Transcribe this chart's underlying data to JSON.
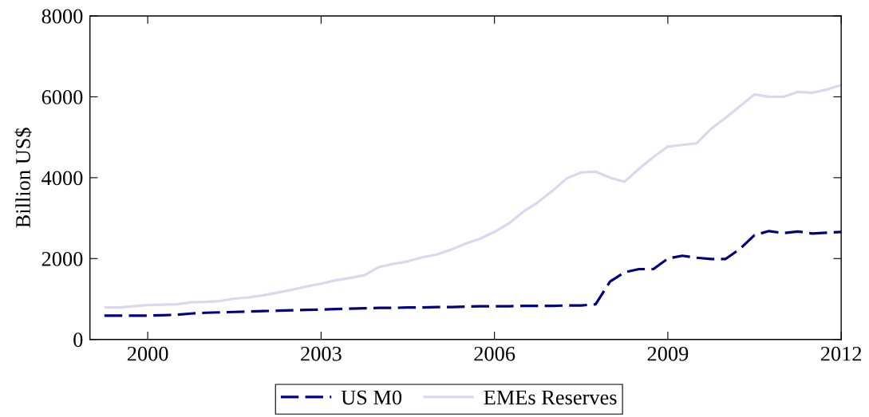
{
  "chart_data": {
    "type": "line",
    "ylabel": "Billion US$",
    "xlim": [
      1999,
      2012
    ],
    "xticks": [
      2000,
      2003,
      2006,
      2009,
      2012
    ],
    "ylim": [
      0,
      8000
    ],
    "yticks": [
      0,
      2000,
      4000,
      6000,
      8000
    ],
    "grid": false,
    "legend": "bottom",
    "marker": "none",
    "x": [
      1999.25,
      1999.5,
      1999.75,
      2000.0,
      2000.25,
      2000.5,
      2000.75,
      2001.0,
      2001.25,
      2001.5,
      2001.75,
      2002.0,
      2002.25,
      2002.5,
      2002.75,
      2003.0,
      2003.25,
      2003.5,
      2003.75,
      2004.0,
      2004.25,
      2004.5,
      2004.75,
      2005.0,
      2005.25,
      2005.5,
      2005.75,
      2006.0,
      2006.25,
      2006.5,
      2006.75,
      2007.0,
      2007.25,
      2007.5,
      2007.75,
      2008.0,
      2008.25,
      2008.5,
      2008.75,
      2009.0,
      2009.25,
      2009.5,
      2009.75,
      2010.0,
      2010.25,
      2010.5,
      2010.75,
      2011.0,
      2011.25,
      2011.5,
      2011.75,
      2012.0
    ],
    "series": [
      {
        "name": "US M0",
        "color": "#000080",
        "line_style": "dashed",
        "values": [
          590,
          590,
          590,
          590,
          600,
          610,
          640,
          660,
          670,
          680,
          690,
          700,
          710,
          720,
          730,
          740,
          750,
          760,
          770,
          780,
          780,
          790,
          790,
          800,
          800,
          810,
          820,
          820,
          820,
          830,
          830,
          830,
          840,
          840,
          870,
          1430,
          1660,
          1740,
          1740,
          2000,
          2070,
          2020,
          1990,
          1990,
          2240,
          2580,
          2680,
          2630,
          2670,
          2620,
          2640,
          2660
        ]
      },
      {
        "name": "EMEs Reserves",
        "color": "#d8d8ee",
        "line_style": "solid",
        "values": [
          790,
          790,
          820,
          850,
          860,
          870,
          920,
          930,
          950,
          1010,
          1040,
          1090,
          1160,
          1230,
          1310,
          1380,
          1460,
          1520,
          1590,
          1790,
          1870,
          1930,
          2030,
          2100,
          2220,
          2370,
          2490,
          2660,
          2870,
          3160,
          3390,
          3670,
          3980,
          4130,
          4150,
          4000,
          3900,
          4220,
          4510,
          4770,
          4810,
          4850,
          5210,
          5480,
          5770,
          6060,
          6000,
          6000,
          6120,
          6100,
          6180,
          6290
        ]
      }
    ]
  }
}
